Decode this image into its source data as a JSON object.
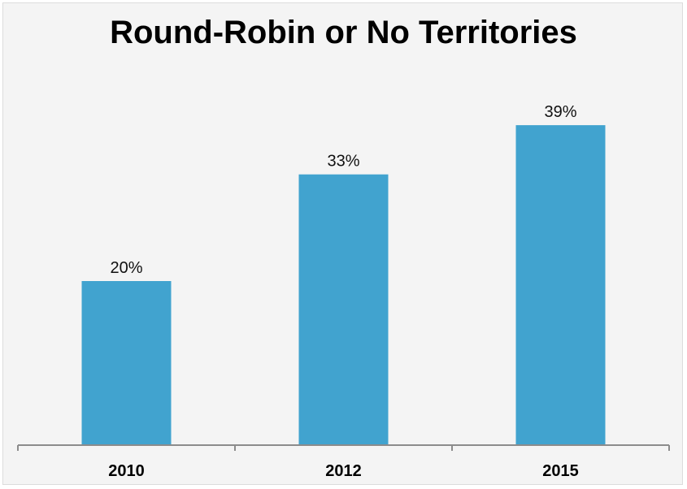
{
  "chart_data": {
    "type": "bar",
    "title": "Round-Robin or No Territories",
    "categories": [
      "2010",
      "2012",
      "2015"
    ],
    "values": [
      20,
      33,
      39
    ],
    "value_labels": [
      "20%",
      "33%",
      "39%"
    ],
    "xlabel": "",
    "ylabel": "",
    "ylim": [
      0,
      40
    ],
    "grid": false,
    "legend": "none",
    "bar_color": "#41A3CF",
    "background_color": "#F4F4F4"
  }
}
